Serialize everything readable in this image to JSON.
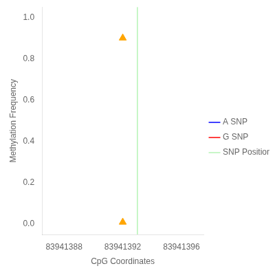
{
  "chart_data": {
    "type": "scatter",
    "xlabel": "CpG Coordinates",
    "ylabel": "Methylation Frequency",
    "xlim": [
      83941386.5,
      83941397.5
    ],
    "ylim": [
      -0.05,
      1.05
    ],
    "xticks": [
      83941388,
      83941392,
      83941396
    ],
    "yticks": [
      {
        "value": 0,
        "label": "0.0"
      },
      0.2,
      0.4,
      0.6,
      0.8,
      {
        "value": 1,
        "label": "1.0"
      }
    ],
    "grid": false,
    "legend": "right",
    "series": [
      {
        "name": "A SNP",
        "color": "#0000FF",
        "type": "line",
        "x": [],
        "values": []
      },
      {
        "name": "G SNP",
        "color": "#FF0000",
        "type": "line",
        "x": [],
        "values": []
      },
      {
        "name": "SNP Position",
        "color": "#90EE90",
        "type": "vline",
        "x": [
          83941393
        ]
      },
      {
        "color": "#FFA500",
        "type": "scatter",
        "marker": "triangle",
        "x": [
          83941392,
          83941392
        ],
        "values": [
          0.9,
          0.01
        ]
      }
    ]
  }
}
